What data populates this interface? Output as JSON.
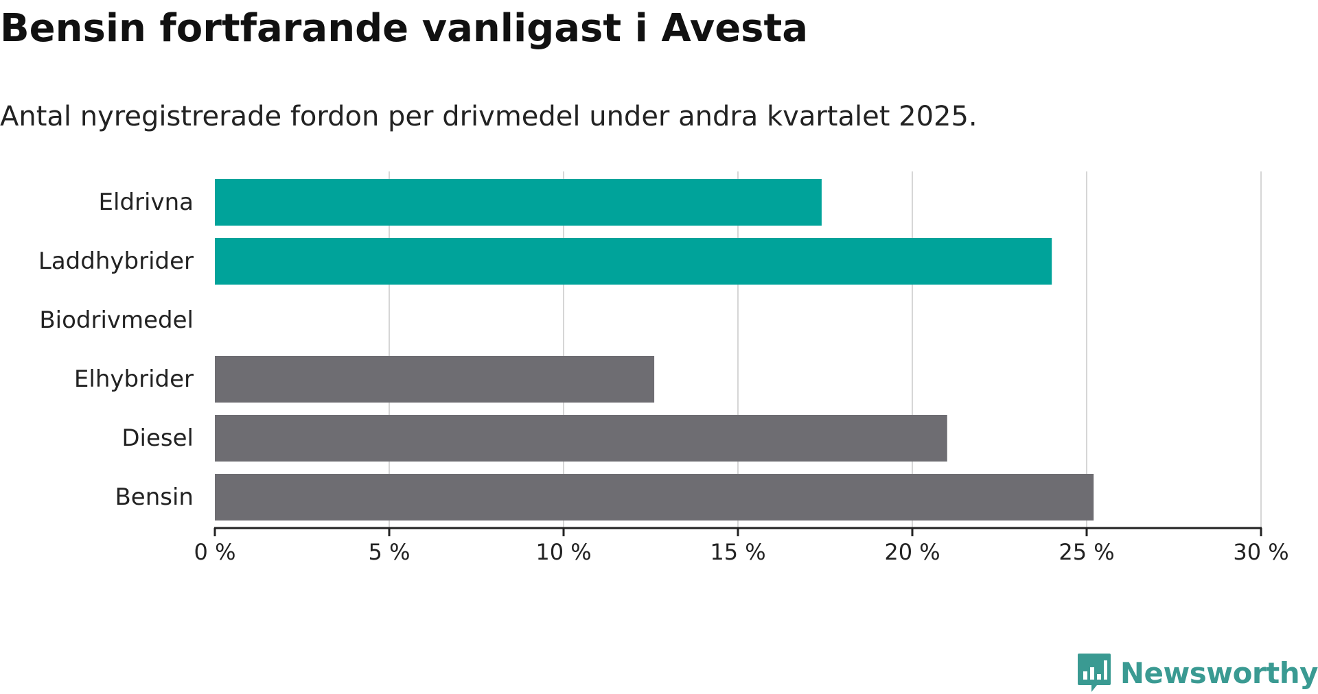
{
  "colors": {
    "highlight": "#00a39a",
    "base": "#6e6d72",
    "grid": "#d6d6d6",
    "axis": "#222222",
    "brand": "#3a9a92"
  },
  "logo": {
    "text": "Newsworthy",
    "icon": "newsworthy-bar-chart-icon"
  },
  "chart_data": {
    "type": "bar",
    "orientation": "horizontal",
    "title": "Bensin fortfarande vanligast i Avesta",
    "subtitle": "Antal nyregistrerade fordon per drivmedel under andra kvartalet 2025.",
    "xlabel": "",
    "ylabel": "",
    "xlim": [
      0,
      30
    ],
    "x_ticks": [
      0,
      5,
      10,
      15,
      20,
      25,
      30
    ],
    "tick_format_suffix": " %",
    "grid": "vertical",
    "legend": "none",
    "categories": [
      "Eldrivna",
      "Laddhybrider",
      "Biodrivmedel",
      "Elhybrider",
      "Diesel",
      "Bensin"
    ],
    "values": [
      17.4,
      24.0,
      0,
      12.6,
      21.0,
      25.2
    ],
    "highlighted": [
      true,
      true,
      true,
      false,
      false,
      false
    ]
  }
}
